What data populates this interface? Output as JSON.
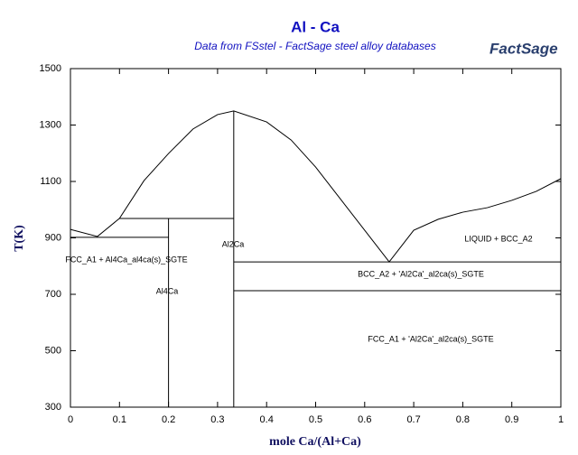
{
  "chart_data": {
    "type": "line",
    "title": "Al - Ca",
    "subtitle": "Data from FSstel - FactSage steel alloy databases",
    "logo": "FactSage",
    "x_label": "mole Ca/(Al+Ca)",
    "y_label": "T(K)",
    "xlim": [
      0,
      1
    ],
    "ylim": [
      300,
      1500
    ],
    "xticks": [
      0,
      0.1,
      0.2,
      0.3,
      0.4,
      0.5,
      0.6,
      0.7,
      0.8,
      0.9,
      1
    ],
    "yticks": [
      300,
      500,
      700,
      900,
      1100,
      1300,
      1500
    ],
    "annotations": [
      "FCC_A1 + Al4Ca_al4ca(s)_SGTE",
      "Al4Ca",
      "Al2Ca",
      "LIQUID + BCC_A2",
      "BCC_A2 + 'Al2Ca'_al2ca(s)_SGTE",
      "FCC_A1 + 'Al2Ca'_al2ca(s)_SGTE"
    ],
    "series": [
      {
        "color": "#000000",
        "x": [
          0,
          0.055,
          0.1,
          0.15,
          0.2,
          0.25,
          0.3,
          0.333,
          0.4,
          0.45,
          0.5,
          0.55,
          0.6,
          0.65,
          0.7,
          0.75,
          0.8,
          0.85,
          0.9,
          0.95,
          1
        ],
        "values": [
          930,
          905,
          969,
          1103,
          1199,
          1286,
          1337,
          1350,
          1311,
          1247,
          1151,
          1039,
          927,
          815,
          927,
          966,
          991,
          1007,
          1033,
          1065,
          1110
        ]
      },
      {
        "color": "#000000",
        "x": [
          0,
          0.2
        ],
        "values": [
          902,
          902
        ]
      },
      {
        "color": "#000000",
        "x": [
          0.1,
          0.333
        ],
        "values": [
          969,
          969
        ]
      },
      {
        "color": "#000000",
        "x": [
          0.333,
          1
        ],
        "values": [
          815,
          815
        ]
      },
      {
        "color": "#000000",
        "x": [
          0.333,
          1
        ],
        "values": [
          713,
          713
        ]
      },
      {
        "color": "#000000",
        "x": [
          0.2,
          0.2
        ],
        "values": [
          300,
          969
        ]
      },
      {
        "color": "#000000",
        "x": [
          0.333,
          0.333
        ],
        "values": [
          300,
          1350
        ]
      }
    ]
  }
}
